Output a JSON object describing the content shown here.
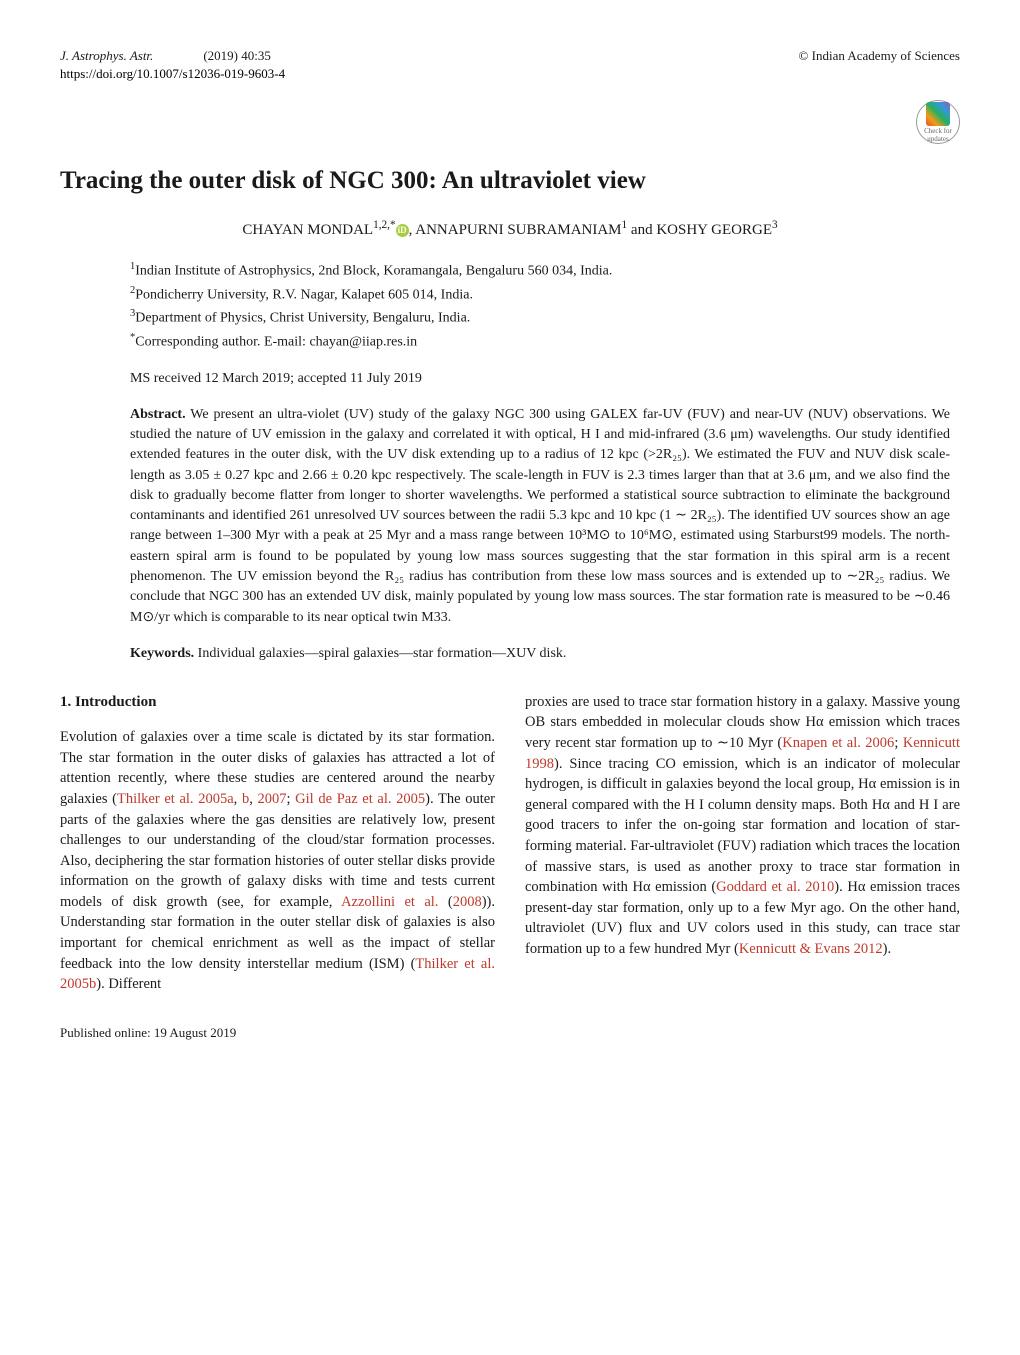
{
  "header": {
    "journal": "J. Astrophys. Astr.",
    "year_issue": "(2019) 40:35",
    "copyright": "© Indian Academy of Sciences",
    "doi": "https://doi.org/10.1007/s12036-019-9603-4",
    "crossmark_label": "Check for updates"
  },
  "title": "Tracing the outer disk of NGC 300: An ultraviolet view",
  "authors": {
    "line": "CHAYAN MONDAL",
    "sup1": "1,2,*",
    "sep1": ", ANNAPURNI SUBRAMANIAM",
    "sup2": "1",
    "sep2": " and KOSHY GEORGE",
    "sup3": "3"
  },
  "affiliations": {
    "a1_sup": "1",
    "a1": "Indian Institute of Astrophysics, 2nd Block, Koramangala, Bengaluru 560 034, India.",
    "a2_sup": "2",
    "a2": "Pondicherry University, R.V. Nagar, Kalapet 605 014, India.",
    "a3_sup": "3",
    "a3": "Department of Physics, Christ University, Bengaluru, India.",
    "a4_sup": "*",
    "a4": "Corresponding author. E-mail: chayan@iiap.res.in"
  },
  "received": "MS received 12 March 2019; accepted 11 July 2019",
  "abstract": {
    "label": "Abstract.",
    "text": "We present an ultra-violet (UV) study of the galaxy NGC 300 using GALEX far-UV (FUV) and near-UV (NUV) observations. We studied the nature of UV emission in the galaxy and correlated it with optical, H I and mid-infrared (3.6 μm) wavelengths. Our study identified extended features in the outer disk, with the UV disk extending up to a radius of 12 kpc (>2R₂₅). We estimated the FUV and NUV disk scale-length as 3.05 ± 0.27 kpc and 2.66 ± 0.20 kpc respectively. The scale-length in FUV is 2.3 times larger than that at 3.6 μm, and we also find the disk to gradually become flatter from longer to shorter wavelengths. We performed a statistical source subtraction to eliminate the background contaminants and identified 261 unresolved UV sources between the radii 5.3 kpc and 10 kpc (1 ∼ 2R₂₅). The identified UV sources show an age range between 1–300 Myr with a peak at 25 Myr and a mass range between 10³M⊙ to 10⁶M⊙, estimated using Starburst99 models. The north-eastern spiral arm is found to be populated by young low mass sources suggesting that the star formation in this spiral arm is a recent phenomenon. The UV emission beyond the R₂₅ radius has contribution from these low mass sources and is extended up to ∼2R₂₅ radius. We conclude that NGC 300 has an extended UV disk, mainly populated by young low mass sources. The star formation rate is measured to be ∼0.46 M⊙/yr which is comparable to its near optical twin M33."
  },
  "keywords": {
    "label": "Keywords.",
    "text": "Individual galaxies—spiral galaxies—star formation—XUV disk."
  },
  "section1": {
    "heading": "1. Introduction",
    "col1_part1": "Evolution of galaxies over a time scale is dictated by its star formation. The star formation in the outer disks of galaxies has attracted a lot of attention recently, where these studies are centered around the nearby galaxies (",
    "cite1": "Thilker et al. 2005a",
    "col1_sep1": ", ",
    "cite2": "b",
    "col1_sep2": ", ",
    "cite3": "2007",
    "col1_sep3": "; ",
    "cite4": "Gil de Paz et al. 2005",
    "col1_part2": "). The outer parts of the galaxies where the gas densities are relatively low, present challenges to our understanding of the cloud/star formation processes. Also, deciphering the star formation histories of outer stellar disks provide information on the growth of galaxy disks with time and tests current models of disk growth (see, for example, ",
    "cite5": "Azzollini et al.",
    "col1_sep4": " (",
    "cite6": "2008",
    "col1_part3": ")). Understanding star formation in the outer stellar disk of galaxies is also important for chemical enrichment as well as the impact of stellar feedback into the low density interstellar medium (ISM) (",
    "cite7": "Thilker et al. 2005b",
    "col1_part4": "). Different",
    "col2_part1": "proxies are used to trace star formation history in a galaxy. Massive young OB stars embedded in molecular clouds show Hα emission which traces very recent star formation up to ∼10 Myr (",
    "cite8": "Knapen et al. 2006",
    "col2_sep1": "; ",
    "cite9": "Kennicutt 1998",
    "col2_part2": "). Since tracing CO emission, which is an indicator of molecular hydrogen, is difficult in galaxies beyond the local group, Hα emission is in general compared with the H I column density maps. Both Hα and H I are good tracers to infer the on-going star formation and location of star-forming material. Far-ultraviolet (FUV) radiation which traces the location of massive stars, is used as another proxy to trace star formation in combination with Hα emission (",
    "cite10": "Goddard et al. 2010",
    "col2_part3": "). Hα emission traces present-day star formation, only up to a few Myr ago. On the other hand, ultraviolet (UV) flux and UV colors used in this study, can trace star formation up to a few hundred Myr (",
    "cite11": "Kennicutt & Evans 2012",
    "col2_part4": ")."
  },
  "footer": {
    "published": "Published online: 19 August 2019"
  }
}
